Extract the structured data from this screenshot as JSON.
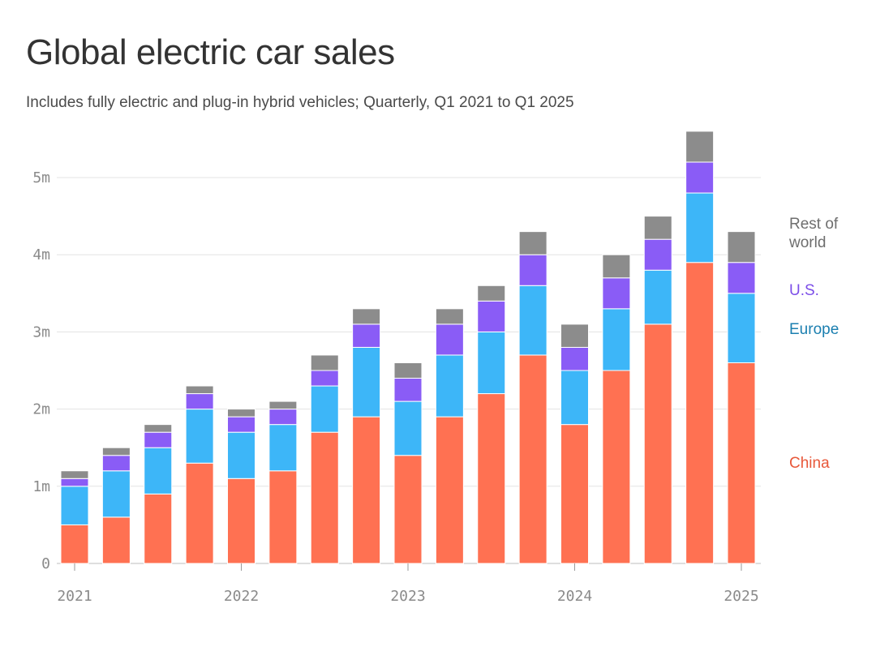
{
  "chart_data": {
    "type": "bar",
    "stacked": true,
    "title": "Global electric car sales",
    "subtitle": "Includes fully electric and plug-in hybrid vehicles; Quarterly, Q1 2021 to Q1 2025",
    "categories": [
      "Q1 2021",
      "Q2 2021",
      "Q3 2021",
      "Q4 2021",
      "Q1 2022",
      "Q2 2022",
      "Q3 2022",
      "Q4 2022",
      "Q1 2023",
      "Q2 2023",
      "Q3 2023",
      "Q4 2023",
      "Q1 2024",
      "Q2 2024",
      "Q3 2024",
      "Q4 2024",
      "Q1 2025"
    ],
    "x_tick_labels": [
      {
        "label": "2021",
        "index": 0
      },
      {
        "label": "2022",
        "index": 4
      },
      {
        "label": "2023",
        "index": 8
      },
      {
        "label": "2024",
        "index": 12
      },
      {
        "label": "2025",
        "index": 16
      }
    ],
    "y_ticks": [
      {
        "value": 0,
        "label": "0"
      },
      {
        "value": 1,
        "label": "1m"
      },
      {
        "value": 2,
        "label": "2m"
      },
      {
        "value": 3,
        "label": "3m"
      },
      {
        "value": 4,
        "label": "4m"
      },
      {
        "value": 5,
        "label": "5m"
      }
    ],
    "ylim": [
      0,
      5.6
    ],
    "y_unit": "millions",
    "grid": true,
    "legend_placement": "right",
    "series": [
      {
        "name": "China",
        "legend_label": "China",
        "color": "#ff7152",
        "legend_color": "#e8583a",
        "values": [
          0.5,
          0.6,
          0.9,
          1.3,
          1.1,
          1.2,
          1.7,
          1.9,
          1.4,
          1.9,
          2.2,
          2.7,
          1.8,
          2.5,
          3.1,
          3.9,
          2.6
        ]
      },
      {
        "name": "Europe",
        "legend_label": "Europe",
        "color": "#3db6f8",
        "legend_color": "#1b7fb0",
        "values": [
          0.5,
          0.6,
          0.6,
          0.7,
          0.6,
          0.6,
          0.6,
          0.9,
          0.7,
          0.8,
          0.8,
          0.9,
          0.7,
          0.8,
          0.7,
          0.9,
          0.9
        ]
      },
      {
        "name": "U.S.",
        "legend_label": "U.S.",
        "color": "#8a5cf6",
        "legend_color": "#7c4ee8",
        "values": [
          0.1,
          0.2,
          0.2,
          0.2,
          0.2,
          0.2,
          0.2,
          0.3,
          0.3,
          0.4,
          0.4,
          0.4,
          0.3,
          0.4,
          0.4,
          0.4,
          0.4
        ]
      },
      {
        "name": "Rest of world",
        "legend_label": [
          "Rest of",
          "world"
        ],
        "color": "#8c8c8c",
        "legend_color": "#6e6e6e",
        "values": [
          0.1,
          0.1,
          0.1,
          0.1,
          0.1,
          0.1,
          0.2,
          0.2,
          0.2,
          0.2,
          0.2,
          0.3,
          0.3,
          0.3,
          0.3,
          0.4,
          0.4
        ]
      }
    ]
  }
}
